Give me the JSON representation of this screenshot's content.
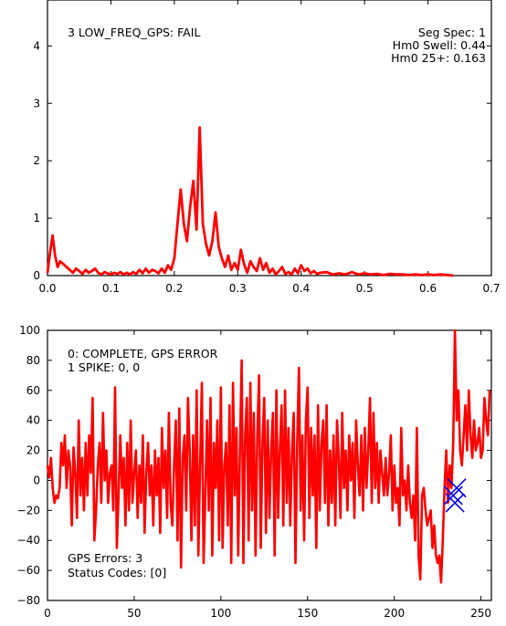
{
  "chart_data": [
    {
      "type": "line",
      "annotation_left": "3 LOW_FREQ_GPS: FAIL",
      "annotation_right": [
        "Seg Spec: 1",
        "Hm0 Swell: 0.44",
        "Hm0 25+: 0.163"
      ],
      "xlim": [
        0,
        0.7
      ],
      "ylim": [
        0,
        4.8
      ],
      "xticks": [
        0.0,
        0.1,
        0.2,
        0.3,
        0.4,
        0.5,
        0.6,
        0.7
      ],
      "xtick_labels": [
        "0.0",
        "0.1",
        "0.2",
        "0.3",
        "0.4",
        "0.5",
        "0.6",
        "0.7"
      ],
      "yticks": [
        0,
        1,
        2,
        3,
        4
      ],
      "ytick_labels": [
        "0",
        "1",
        "2",
        "3",
        "4"
      ],
      "grid": false,
      "series": [
        {
          "color": "#ff0000",
          "x": [
            0.0,
            0.004,
            0.008,
            0.012,
            0.016,
            0.02,
            0.025,
            0.03,
            0.035,
            0.04,
            0.045,
            0.05,
            0.055,
            0.06,
            0.065,
            0.07,
            0.075,
            0.08,
            0.085,
            0.09,
            0.095,
            0.1,
            0.105,
            0.11,
            0.115,
            0.12,
            0.125,
            0.13,
            0.135,
            0.14,
            0.145,
            0.15,
            0.155,
            0.16,
            0.165,
            0.17,
            0.175,
            0.18,
            0.185,
            0.19,
            0.195,
            0.2,
            0.205,
            0.21,
            0.215,
            0.22,
            0.225,
            0.23,
            0.235,
            0.24,
            0.245,
            0.25,
            0.255,
            0.26,
            0.265,
            0.27,
            0.275,
            0.28,
            0.285,
            0.29,
            0.295,
            0.3,
            0.305,
            0.31,
            0.315,
            0.32,
            0.325,
            0.33,
            0.335,
            0.34,
            0.345,
            0.35,
            0.355,
            0.36,
            0.365,
            0.37,
            0.375,
            0.38,
            0.385,
            0.39,
            0.395,
            0.4,
            0.405,
            0.41,
            0.415,
            0.42,
            0.425,
            0.43,
            0.44,
            0.45,
            0.46,
            0.47,
            0.48,
            0.49,
            0.5,
            0.51,
            0.52,
            0.53,
            0.54,
            0.55,
            0.56,
            0.57,
            0.58,
            0.59,
            0.6,
            0.61,
            0.62,
            0.63,
            0.64
          ],
          "y": [
            0.05,
            0.4,
            0.7,
            0.35,
            0.15,
            0.25,
            0.2,
            0.15,
            0.1,
            0.05,
            0.12,
            0.08,
            0.03,
            0.1,
            0.05,
            0.08,
            0.12,
            0.05,
            0.02,
            0.06,
            0.04,
            0.02,
            0.05,
            0.03,
            0.06,
            0.02,
            0.05,
            0.02,
            0.06,
            0.03,
            0.1,
            0.04,
            0.12,
            0.05,
            0.1,
            0.08,
            0.04,
            0.12,
            0.05,
            0.18,
            0.1,
            0.3,
            0.9,
            1.5,
            0.9,
            0.6,
            1.2,
            1.65,
            0.8,
            2.58,
            0.9,
            0.55,
            0.35,
            0.6,
            1.1,
            0.5,
            0.3,
            0.15,
            0.35,
            0.1,
            0.22,
            0.1,
            0.45,
            0.2,
            0.05,
            0.25,
            0.15,
            0.08,
            0.3,
            0.1,
            0.22,
            0.05,
            0.12,
            0.02,
            0.08,
            0.15,
            0.03,
            0.06,
            0.02,
            0.12,
            0.04,
            0.18,
            0.08,
            0.12,
            0.04,
            0.08,
            0.03,
            0.05,
            0.06,
            0.02,
            0.04,
            0.02,
            0.06,
            0.02,
            0.04,
            0.02,
            0.03,
            0.01,
            0.03,
            0.02,
            0.02,
            0.01,
            0.02,
            0.01,
            0.02,
            0.01,
            0.02,
            0.01,
            0.0
          ]
        }
      ]
    },
    {
      "type": "line",
      "annotation_top": [
        "0: COMPLETE, GPS ERROR",
        "1 SPIKE: 0, 0"
      ],
      "annotation_bottom": [
        "GPS Errors: 3",
        "Status Codes: [0]"
      ],
      "xlim": [
        0,
        256
      ],
      "ylim": [
        -80,
        100
      ],
      "xticks": [
        0,
        50,
        100,
        150,
        200,
        250
      ],
      "xtick_labels": [
        "0",
        "50",
        "100",
        "150",
        "200",
        "250"
      ],
      "yticks": [
        -80,
        -60,
        -40,
        -20,
        0,
        20,
        40,
        60,
        80,
        100
      ],
      "ytick_labels": [
        "−80",
        "−60",
        "−40",
        "−20",
        "0",
        "20",
        "40",
        "60",
        "80",
        "100"
      ],
      "grid": false,
      "series": [
        {
          "color": "#ff0000",
          "y": [
            10,
            2,
            15,
            -5,
            -15,
            -10,
            -12,
            -5,
            25,
            10,
            30,
            -5,
            20,
            10,
            -30,
            22,
            5,
            -25,
            40,
            -10,
            15,
            -20,
            25,
            -10,
            30,
            5,
            55,
            -40,
            -20,
            10,
            25,
            -15,
            45,
            0,
            20,
            -15,
            5,
            10,
            -20,
            62,
            -45,
            -10,
            30,
            -5,
            15,
            -30,
            25,
            -20,
            40,
            -15,
            5,
            20,
            -25,
            10,
            -15,
            30,
            -35,
            5,
            25,
            -10,
            10,
            -30,
            20,
            -10,
            15,
            -35,
            35,
            -5,
            20,
            -25,
            45,
            -15,
            -30,
            10,
            40,
            -40,
            48,
            -58,
            15,
            30,
            -20,
            55,
            20,
            -40,
            30,
            -30,
            60,
            -50,
            10,
            65,
            -55,
            -10,
            40,
            -20,
            55,
            -50,
            25,
            -5,
            40,
            -40,
            62,
            -45,
            10,
            25,
            -30,
            50,
            -55,
            65,
            -10,
            35,
            -50,
            20,
            80,
            -55,
            30,
            55,
            -40,
            65,
            -20,
            45,
            -50,
            30,
            70,
            -45,
            25,
            55,
            -35,
            40,
            -25,
            20,
            45,
            -50,
            60,
            -25,
            20,
            50,
            -30,
            60,
            -15,
            35,
            -30,
            20,
            45,
            -55,
            25,
            75,
            -20,
            30,
            -40,
            40,
            62,
            -25,
            35,
            -10,
            30,
            -45,
            50,
            -20,
            25,
            40,
            -15,
            50,
            -30,
            20,
            -15,
            30,
            -30,
            40,
            15,
            -25,
            45,
            -5,
            20,
            -20,
            30,
            0,
            25,
            -25,
            40,
            10,
            -10,
            30,
            -20,
            35,
            -5,
            20,
            55,
            -15,
            45,
            -5,
            25,
            -15,
            20,
            5,
            -10,
            15,
            -10,
            5,
            30,
            -20,
            10,
            -15,
            -5,
            -30,
            35,
            -10,
            0,
            -20,
            10,
            -15,
            -25,
            -10,
            -40,
            35,
            -50,
            -66,
            -10,
            -5,
            -20,
            -30,
            -25,
            -20,
            -45,
            -30,
            -50,
            -55,
            -50,
            -68,
            -40,
            -5,
            20,
            -15,
            10,
            -5,
            25,
            100,
            40,
            60,
            20,
            10,
            30,
            50,
            20,
            60,
            30,
            15,
            40,
            20,
            25,
            35,
            15,
            20,
            55,
            40,
            30,
            60
          ],
          "x_start": 0,
          "x_step": 1
        }
      ],
      "markers": {
        "type": "x",
        "color": "#0000ee",
        "x": [
          234,
          236,
          235
        ],
        "y": [
          -10,
          -5,
          -15
        ]
      }
    }
  ]
}
